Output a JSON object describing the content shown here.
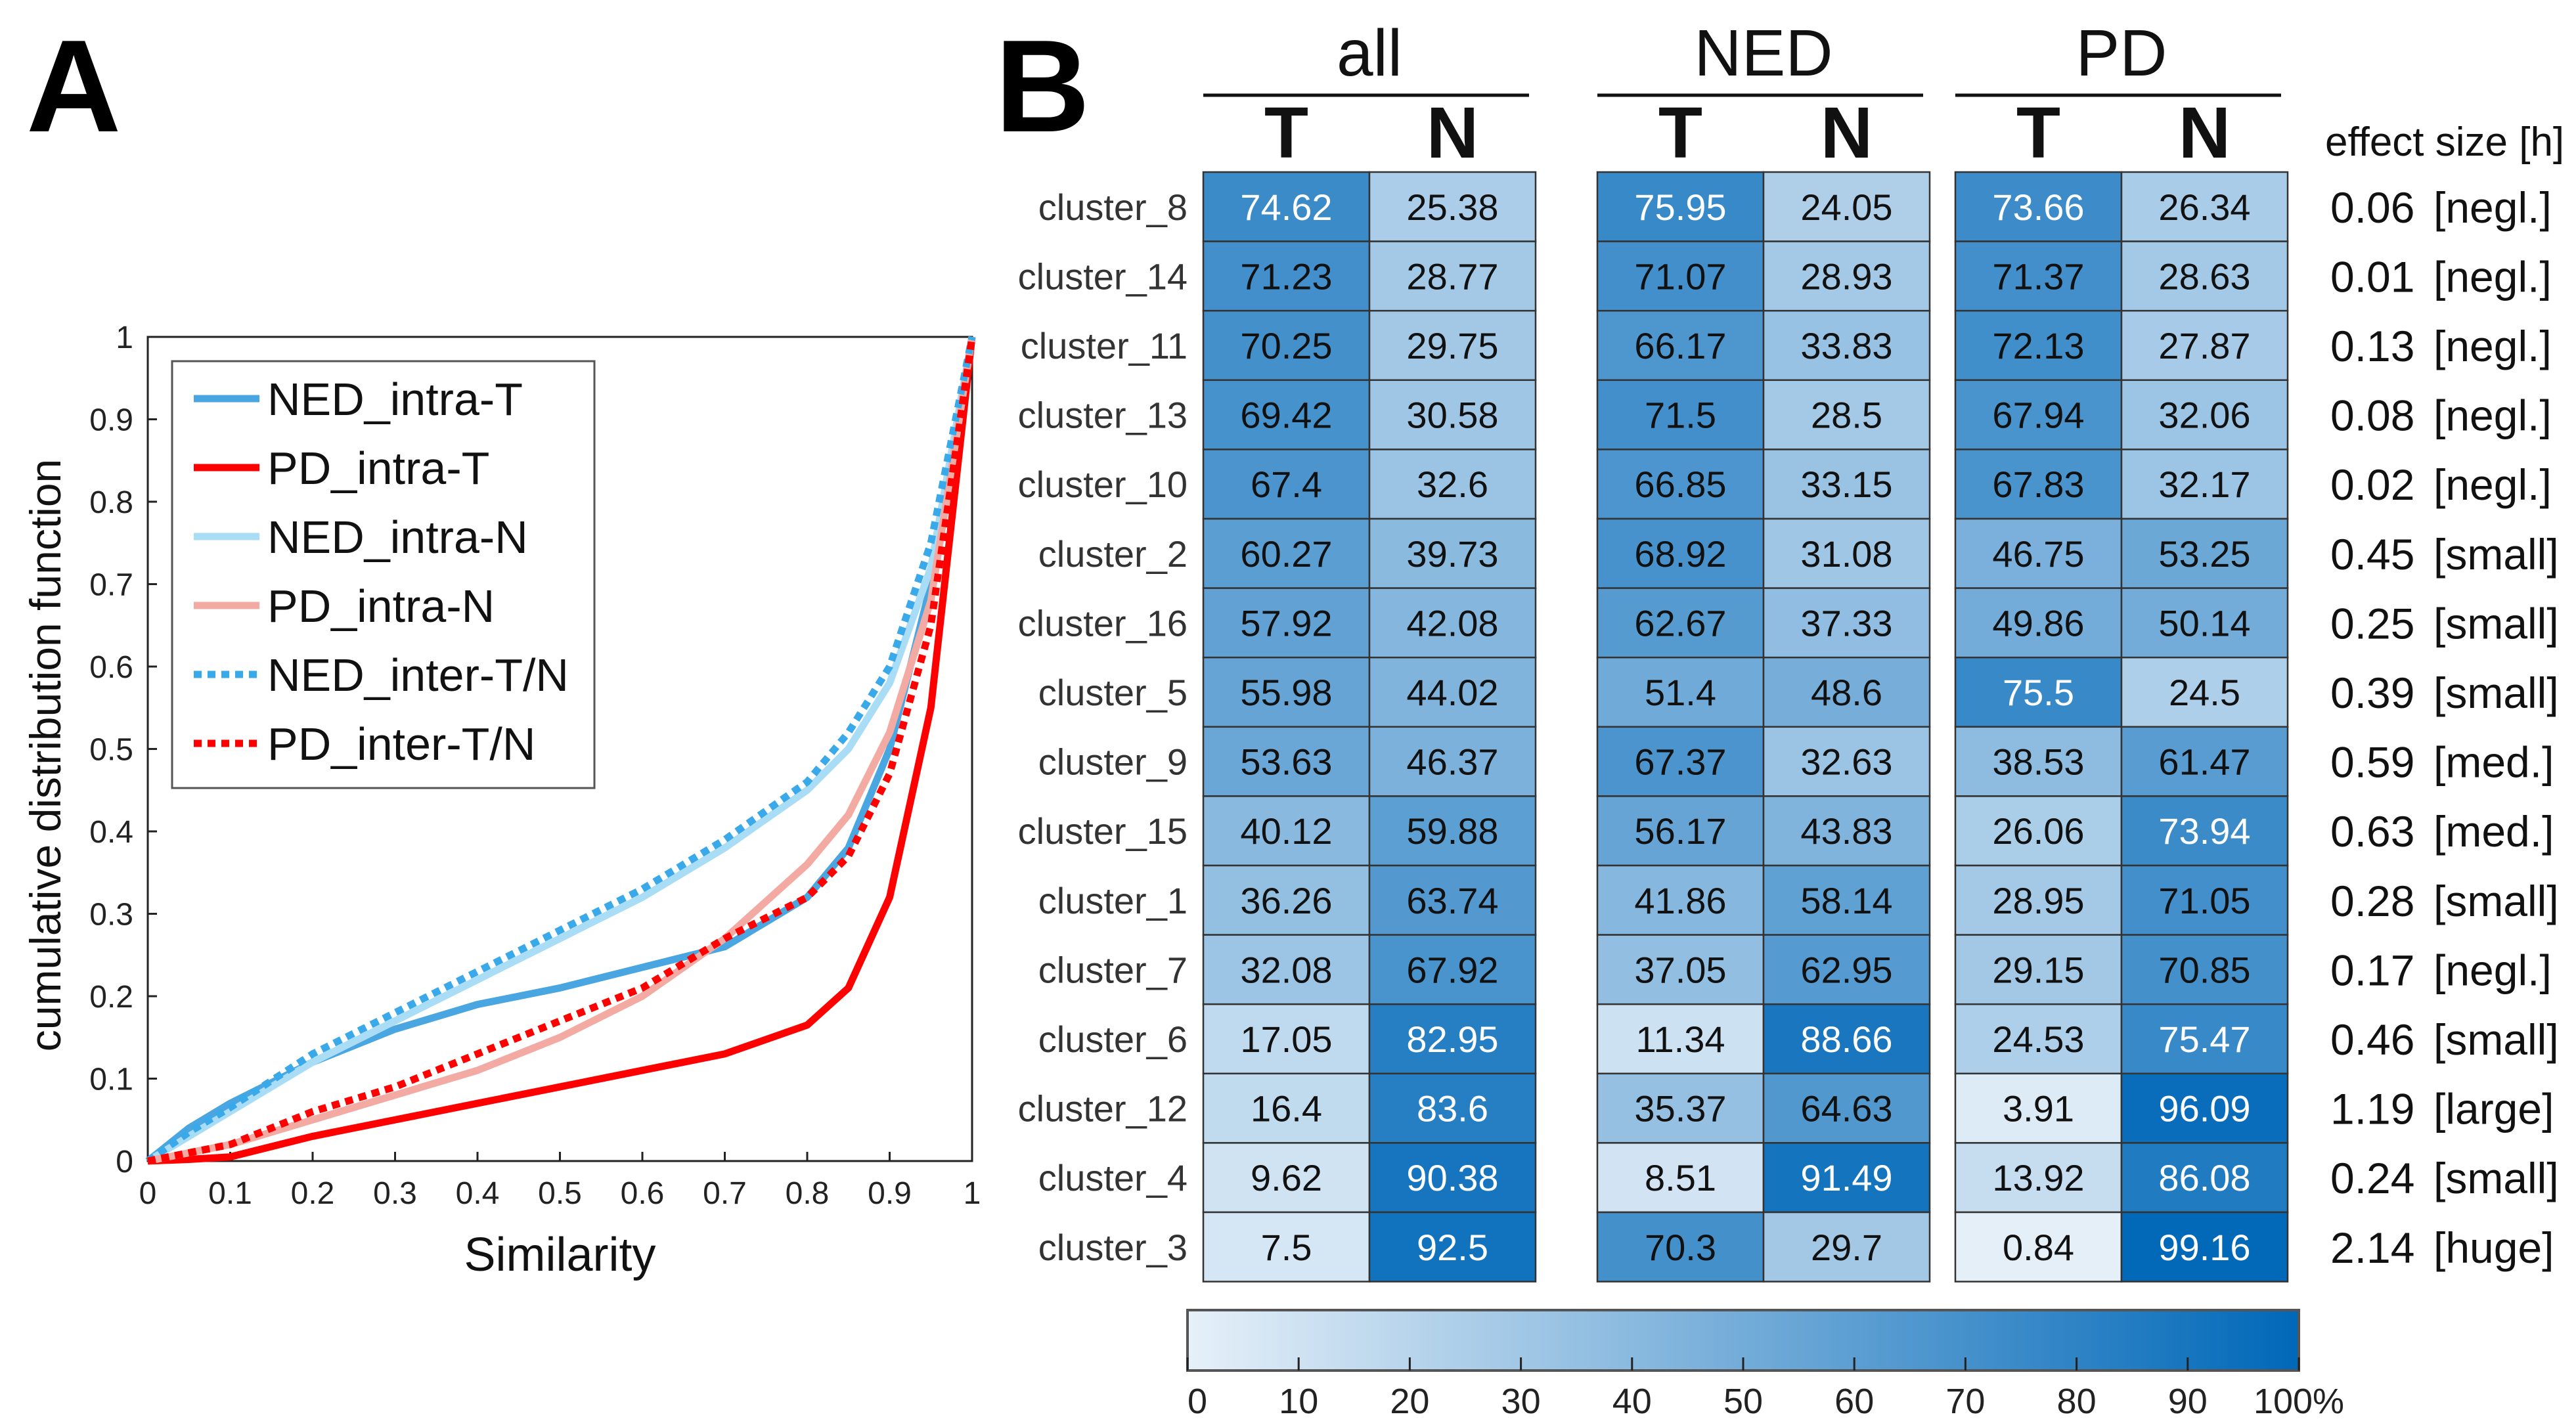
{
  "panel_labels": {
    "a": "A",
    "b": "B"
  },
  "chart_data": [
    {
      "type": "line",
      "title": "",
      "xlabel": "Similarity",
      "ylabel": "cumulative distribution function",
      "xlim": [
        0,
        1
      ],
      "ylim": [
        0,
        1
      ],
      "xticks": [
        "0",
        "0.1",
        "0.2",
        "0.3",
        "0.4",
        "0.5",
        "0.6",
        "0.7",
        "0.8",
        "0.9",
        "1"
      ],
      "yticks": [
        "0",
        "0.1",
        "0.2",
        "0.3",
        "0.4",
        "0.5",
        "0.6",
        "0.7",
        "0.8",
        "0.9",
        "1"
      ],
      "legend_position": "top-left",
      "x": [
        0,
        0.05,
        0.1,
        0.2,
        0.3,
        0.4,
        0.5,
        0.6,
        0.7,
        0.8,
        0.85,
        0.9,
        0.95,
        1
      ],
      "series": [
        {
          "name": "NED_intra-T",
          "color": "#4aa6e0",
          "style": "solid",
          "values": [
            0,
            0.04,
            0.07,
            0.12,
            0.16,
            0.19,
            0.21,
            0.235,
            0.26,
            0.32,
            0.38,
            0.5,
            0.7,
            1
          ]
        },
        {
          "name": "PD_intra-T",
          "color": "#ff0000",
          "style": "solid",
          "values": [
            0,
            0.002,
            0.005,
            0.03,
            0.05,
            0.07,
            0.09,
            0.11,
            0.13,
            0.165,
            0.21,
            0.32,
            0.55,
            1
          ]
        },
        {
          "name": "NED_intra-N",
          "color": "#a9dcf5",
          "style": "solid",
          "values": [
            0,
            0.03,
            0.06,
            0.12,
            0.17,
            0.22,
            0.27,
            0.32,
            0.38,
            0.45,
            0.5,
            0.58,
            0.72,
            1
          ]
        },
        {
          "name": "PD_intra-N",
          "color": "#f2aaa2",
          "style": "solid",
          "values": [
            0,
            0.01,
            0.02,
            0.05,
            0.08,
            0.11,
            0.15,
            0.2,
            0.27,
            0.36,
            0.42,
            0.52,
            0.68,
            1
          ]
        },
        {
          "name": "NED_inter-T/N",
          "color": "#3aa9ea",
          "style": "dotted",
          "values": [
            0,
            0.035,
            0.065,
            0.13,
            0.18,
            0.23,
            0.28,
            0.33,
            0.39,
            0.46,
            0.52,
            0.6,
            0.75,
            1
          ]
        },
        {
          "name": "PD_inter-T/N",
          "color": "#ff0000",
          "style": "dotted",
          "values": [
            0,
            0.01,
            0.02,
            0.06,
            0.09,
            0.13,
            0.17,
            0.21,
            0.27,
            0.32,
            0.37,
            0.47,
            0.65,
            1
          ]
        }
      ]
    },
    {
      "type": "heatmap",
      "groups": [
        "all",
        "NED",
        "PD"
      ],
      "columns": [
        "T",
        "N"
      ],
      "effect_header": "effect size [h]",
      "rows": [
        {
          "label": "cluster_8",
          "values": [
            74.62,
            25.38,
            75.95,
            24.05,
            73.66,
            26.34
          ],
          "h": "0.06",
          "size": "[negl.]"
        },
        {
          "label": "cluster_14",
          "values": [
            71.23,
            28.77,
            71.07,
            28.93,
            71.37,
            28.63
          ],
          "h": "0.01",
          "size": "[negl.]"
        },
        {
          "label": "cluster_11",
          "values": [
            70.25,
            29.75,
            66.17,
            33.83,
            72.13,
            27.87
          ],
          "h": "0.13",
          "size": "[negl.]"
        },
        {
          "label": "cluster_13",
          "values": [
            69.42,
            30.58,
            71.5,
            28.5,
            67.94,
            32.06
          ],
          "h": "0.08",
          "size": "[negl.]"
        },
        {
          "label": "cluster_10",
          "values": [
            67.4,
            32.6,
            66.85,
            33.15,
            67.83,
            32.17
          ],
          "h": "0.02",
          "size": "[negl.]"
        },
        {
          "label": "cluster_2",
          "values": [
            60.27,
            39.73,
            68.92,
            31.08,
            46.75,
            53.25
          ],
          "h": "0.45",
          "size": "[small]"
        },
        {
          "label": "cluster_16",
          "values": [
            57.92,
            42.08,
            62.67,
            37.33,
            49.86,
            50.14
          ],
          "h": "0.25",
          "size": "[small]"
        },
        {
          "label": "cluster_5",
          "values": [
            55.98,
            44.02,
            51.4,
            48.6,
            75.5,
            24.5
          ],
          "h": "0.39",
          "size": "[small]"
        },
        {
          "label": "cluster_9",
          "values": [
            53.63,
            46.37,
            67.37,
            32.63,
            38.53,
            61.47
          ],
          "h": "0.59",
          "size": "[med.]"
        },
        {
          "label": "cluster_15",
          "values": [
            40.12,
            59.88,
            56.17,
            43.83,
            26.06,
            73.94
          ],
          "h": "0.63",
          "size": "[med.]"
        },
        {
          "label": "cluster_1",
          "values": [
            36.26,
            63.74,
            41.86,
            58.14,
            28.95,
            71.05
          ],
          "h": "0.28",
          "size": "[small]"
        },
        {
          "label": "cluster_7",
          "values": [
            32.08,
            67.92,
            37.05,
            62.95,
            29.15,
            70.85
          ],
          "h": "0.17",
          "size": "[negl.]"
        },
        {
          "label": "cluster_6",
          "values": [
            17.05,
            82.95,
            11.34,
            88.66,
            24.53,
            75.47
          ],
          "h": "0.46",
          "size": "[small]"
        },
        {
          "label": "cluster_12",
          "values": [
            16.4,
            83.6,
            35.37,
            64.63,
            3.91,
            96.09
          ],
          "h": "1.19",
          "size": "[large]"
        },
        {
          "label": "cluster_4",
          "values": [
            9.62,
            90.38,
            8.51,
            91.49,
            13.92,
            86.08
          ],
          "h": "0.24",
          "size": "[small]"
        },
        {
          "label": "cluster_3",
          "values": [
            7.5,
            92.5,
            70.3,
            29.7,
            0.84,
            99.16
          ],
          "h": "2.14",
          "size": "[huge]"
        }
      ],
      "colorbar": {
        "ticks": [
          "0",
          "10",
          "20",
          "30",
          "40",
          "50",
          "60",
          "70",
          "80",
          "90",
          "100%"
        ],
        "range": [
          0,
          100
        ],
        "low_color": "#e6f0f9",
        "high_color": "#0068b8"
      }
    }
  ]
}
